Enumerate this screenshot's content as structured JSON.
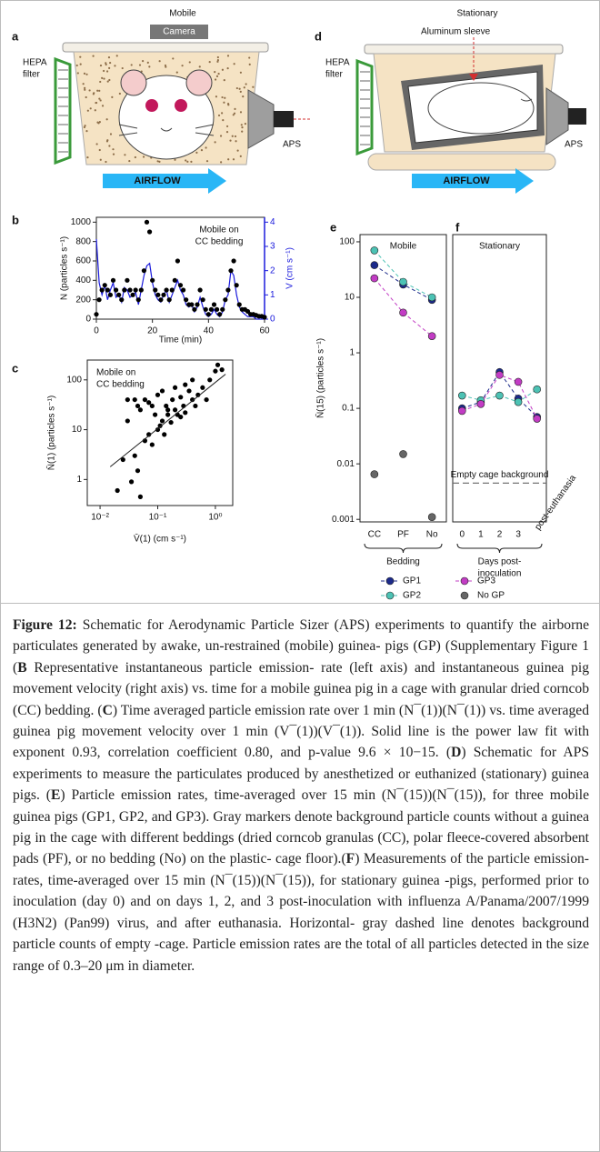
{
  "schematics": {
    "a": {
      "letter": "a",
      "title": "Mobile",
      "camera": "Camera",
      "filter": [
        "HEPA",
        "filter"
      ],
      "outlet": "APS",
      "airflow": "AIRFLOW"
    },
    "d": {
      "letter": "d",
      "title": "Stationary",
      "sleeve": "Aluminum sleeve",
      "filter": [
        "HEPA",
        "filter"
      ],
      "outlet": "APS",
      "airflow": "AIRFLOW"
    }
  },
  "chart_data": [
    {
      "type": "line",
      "panel": "b",
      "annotation": [
        "Mobile on",
        "CC bedding"
      ],
      "xlabel": "Time (min)",
      "ylabel": "N (particles s⁻¹)",
      "y2label": "V (cm s⁻¹)",
      "x": [
        0,
        1,
        2,
        3,
        4,
        5,
        6,
        7,
        8,
        9,
        10,
        11,
        12,
        13,
        14,
        15,
        16,
        17,
        18,
        19,
        20,
        21,
        22,
        23,
        24,
        25,
        26,
        27,
        28,
        29,
        30,
        31,
        32,
        33,
        34,
        35,
        36,
        37,
        38,
        39,
        40,
        41,
        42,
        43,
        44,
        45,
        46,
        47,
        48,
        49,
        50,
        51,
        52,
        53,
        54,
        55,
        56,
        57,
        58,
        59,
        60
      ],
      "xlim": [
        0,
        60
      ],
      "xticks": [
        0,
        20,
        40,
        60
      ],
      "ylim": [
        0,
        1050
      ],
      "yticks": [
        0,
        200,
        400,
        600,
        800,
        1000
      ],
      "y2lim": [
        0,
        4.2
      ],
      "y2ticks": [
        0,
        1,
        2,
        3,
        4
      ],
      "y2color": "#1a1adc",
      "series": [
        {
          "color": "#000000",
          "marker": true,
          "line": false,
          "values": [
            50,
            200,
            300,
            350,
            300,
            250,
            400,
            300,
            250,
            200,
            300,
            400,
            300,
            250,
            300,
            200,
            300,
            500,
            1000,
            900,
            400,
            300,
            250,
            200,
            250,
            300,
            200,
            300,
            400,
            600,
            350,
            300,
            200,
            150,
            150,
            100,
            150,
            300,
            200,
            100,
            50,
            100,
            150,
            100,
            50,
            100,
            200,
            300,
            500,
            600,
            350,
            150,
            100,
            100,
            80,
            50,
            50,
            40,
            30,
            30,
            20
          ]
        },
        {
          "color": "#1a1adc",
          "marker": false,
          "line": true,
          "axis": "y2",
          "values": [
            3.3,
            1.5,
            1.0,
            1.4,
            0.8,
            1.2,
            1.5,
            0.9,
            1.0,
            0.7,
            1.3,
            1.2,
            0.9,
            1.0,
            1.1,
            0.6,
            1.2,
            1.8,
            2.2,
            2.3,
            1.5,
            1.0,
            0.8,
            0.7,
            1.0,
            1.2,
            0.7,
            1.0,
            1.3,
            1.6,
            1.2,
            1.0,
            0.6,
            0.5,
            0.6,
            0.3,
            0.5,
            0.9,
            0.5,
            0.2,
            0.1,
            0.2,
            0.4,
            0.2,
            0.1,
            0.3,
            0.8,
            1.0,
            2.0,
            1.8,
            1.0,
            0.5,
            0.3,
            0.2,
            0.1,
            0.1,
            0.1,
            0,
            0,
            0,
            0
          ]
        }
      ]
    },
    {
      "type": "scatter",
      "panel": "c",
      "annotation": [
        "Mobile on",
        "CC bedding"
      ],
      "xlabel": "V̄(1) (cm s⁻¹)",
      "ylabel": "N̄(1) (particles s⁻¹)",
      "xlog": true,
      "ylog": true,
      "color": "#000000",
      "xlim": [
        0.006,
        2
      ],
      "xticks": [
        {
          "value": 0.01,
          "label": "10⁻²"
        },
        {
          "value": 0.1,
          "label": "10⁻¹"
        },
        {
          "value": 1,
          "label": "10⁰"
        }
      ],
      "ylim": [
        0.3,
        250
      ],
      "yticks": [
        1,
        10,
        100
      ],
      "x": [
        0.02,
        0.025,
        0.03,
        0.035,
        0.04,
        0.045,
        0.05,
        0.05,
        0.06,
        0.06,
        0.07,
        0.07,
        0.08,
        0.08,
        0.09,
        0.1,
        0.1,
        0.11,
        0.12,
        0.12,
        0.13,
        0.14,
        0.15,
        0.15,
        0.17,
        0.18,
        0.2,
        0.2,
        0.22,
        0.25,
        0.25,
        0.28,
        0.3,
        0.3,
        0.35,
        0.4,
        0.4,
        0.45,
        0.5,
        0.6,
        0.7,
        0.8,
        1.0,
        1.1,
        1.3,
        0.03,
        0.04,
        0.045
      ],
      "y": [
        0.6,
        2.5,
        15,
        0.9,
        40,
        1.5,
        0.45,
        25,
        6,
        40,
        35,
        8,
        30,
        5,
        20,
        10,
        50,
        12,
        15,
        60,
        8,
        30,
        20,
        25,
        14,
        40,
        25,
        70,
        20,
        18,
        45,
        30,
        80,
        22,
        60,
        40,
        100,
        30,
        50,
        70,
        40,
        100,
        150,
        200,
        160,
        40,
        3,
        30
      ],
      "fit": {
        "x": [
          0.015,
          1.5
        ],
        "y": [
          1.8,
          130
        ]
      }
    },
    {
      "type": "line",
      "panel": "e",
      "title": "Mobile",
      "ylabel": "N̄(15) (particles s⁻¹)",
      "xlabel": [
        "Bedding"
      ],
      "ylog": true,
      "ylim": [
        0.0009,
        135
      ],
      "yticks": [
        0.001,
        0.01,
        0.1,
        1,
        10,
        100
      ],
      "categories": [
        "CC",
        "PF",
        "No"
      ],
      "series": [
        {
          "name": "GP1",
          "color": "#1c2a8a",
          "marker": true,
          "line": true,
          "dash": true,
          "values": [
            38,
            17,
            9
          ]
        },
        {
          "name": "GP2",
          "color": "#4cc2b4",
          "marker": true,
          "line": true,
          "dash": true,
          "values": [
            70,
            19,
            10
          ]
        },
        {
          "name": "GP3",
          "color": "#c23cc4",
          "marker": true,
          "line": true,
          "dash": true,
          "values": [
            22,
            5.3,
            2
          ]
        },
        {
          "name": "No GP",
          "color": "#666666",
          "marker": true,
          "line": false,
          "values": [
            0.0065,
            0.015,
            0.0011
          ]
        }
      ]
    },
    {
      "type": "line",
      "panel": "f",
      "title": "Stationary",
      "xlabel": [
        "Days post-",
        "inoculation"
      ],
      "ylog": true,
      "ylim": [
        0.0009,
        135
      ],
      "categories": [
        "0",
        "1",
        "2",
        "3",
        "post-euthanasia"
      ],
      "reference": {
        "value": 0.0045,
        "label": "Empty cage background"
      },
      "series": [
        {
          "color": "#1c2a8a",
          "marker": true,
          "line": true,
          "dash": true,
          "values": [
            0.1,
            0.13,
            0.45,
            0.15,
            0.07
          ]
        },
        {
          "color": "#4cc2b4",
          "marker": true,
          "line": true,
          "dash": true,
          "values": [
            0.17,
            0.14,
            0.17,
            0.13,
            0.22
          ]
        },
        {
          "color": "#c23cc4",
          "marker": true,
          "line": true,
          "dash": true,
          "values": [
            0.09,
            0.12,
            0.4,
            0.3,
            0.065
          ]
        }
      ]
    }
  ],
  "caption": [
    {
      "text": "Figure 12:",
      "bold": true
    },
    {
      "text": " Schematic for Aerodynamic Particle Sizer (APS) experiments to quantify the airborne particulates generated by awake, un-restrained (mobile) guinea- pigs (GP) (Supplementary Figure 1 (",
      "bold": false
    },
    {
      "text": "B",
      "bold": true
    },
    {
      "text": " Representative instantaneous particle emission- rate (left axis) and instantaneous guinea pig movement velocity (right axis) vs. time for a mobile guinea pig in a cage with granular dried corncob (CC) bedding. (",
      "bold": false
    },
    {
      "text": "C",
      "bold": true
    },
    {
      "text": ") Time averaged particle emission rate over 1 min (N¯(1))(N¯(1)) vs. time averaged guinea pig movement velocity over 1 min (V¯(1))(V¯(1)). Solid line is the power law fit with exponent 0.93, correlation coefficient 0.80, and p-value 9.6 × 10−15. (",
      "bold": false
    },
    {
      "text": "D",
      "bold": true
    },
    {
      "text": ") Schematic for APS experiments to measure the particulates produced by anesthetized or euthanized (stationary) guinea pigs. (",
      "bold": false
    },
    {
      "text": "E",
      "bold": true
    },
    {
      "text": ") Particle emission rates, time-averaged over 15 min (N¯(15))(N¯(15)), for three mobile guinea pigs (GP1, GP2, and GP3). Gray markers denote background particle counts without a guinea pig in the cage with different beddings (dried corncob granulas (CC), polar fleece-covered absorbent pads (PF), or no bedding (No) on the plastic- cage floor).(",
      "bold": false
    },
    {
      "text": "F",
      "bold": true
    },
    {
      "text": ") Measurements of the particle emission- rates, time-averaged over 15 min (N¯(15))(N¯(15)), for stationary guinea -pigs, performed prior to inoculation (day 0) and on days 1, 2, and 3 post-inoculation with influenza A/Panama/2007/1999 (H3N2) (Pan99) virus, and after euthanasia. Horizontal- gray dashed line denotes background particle counts of empty -cage. Particle emission rates are the total of all particles detected in the size range of 0.3–20 μm in diameter.",
      "bold": false
    }
  ]
}
